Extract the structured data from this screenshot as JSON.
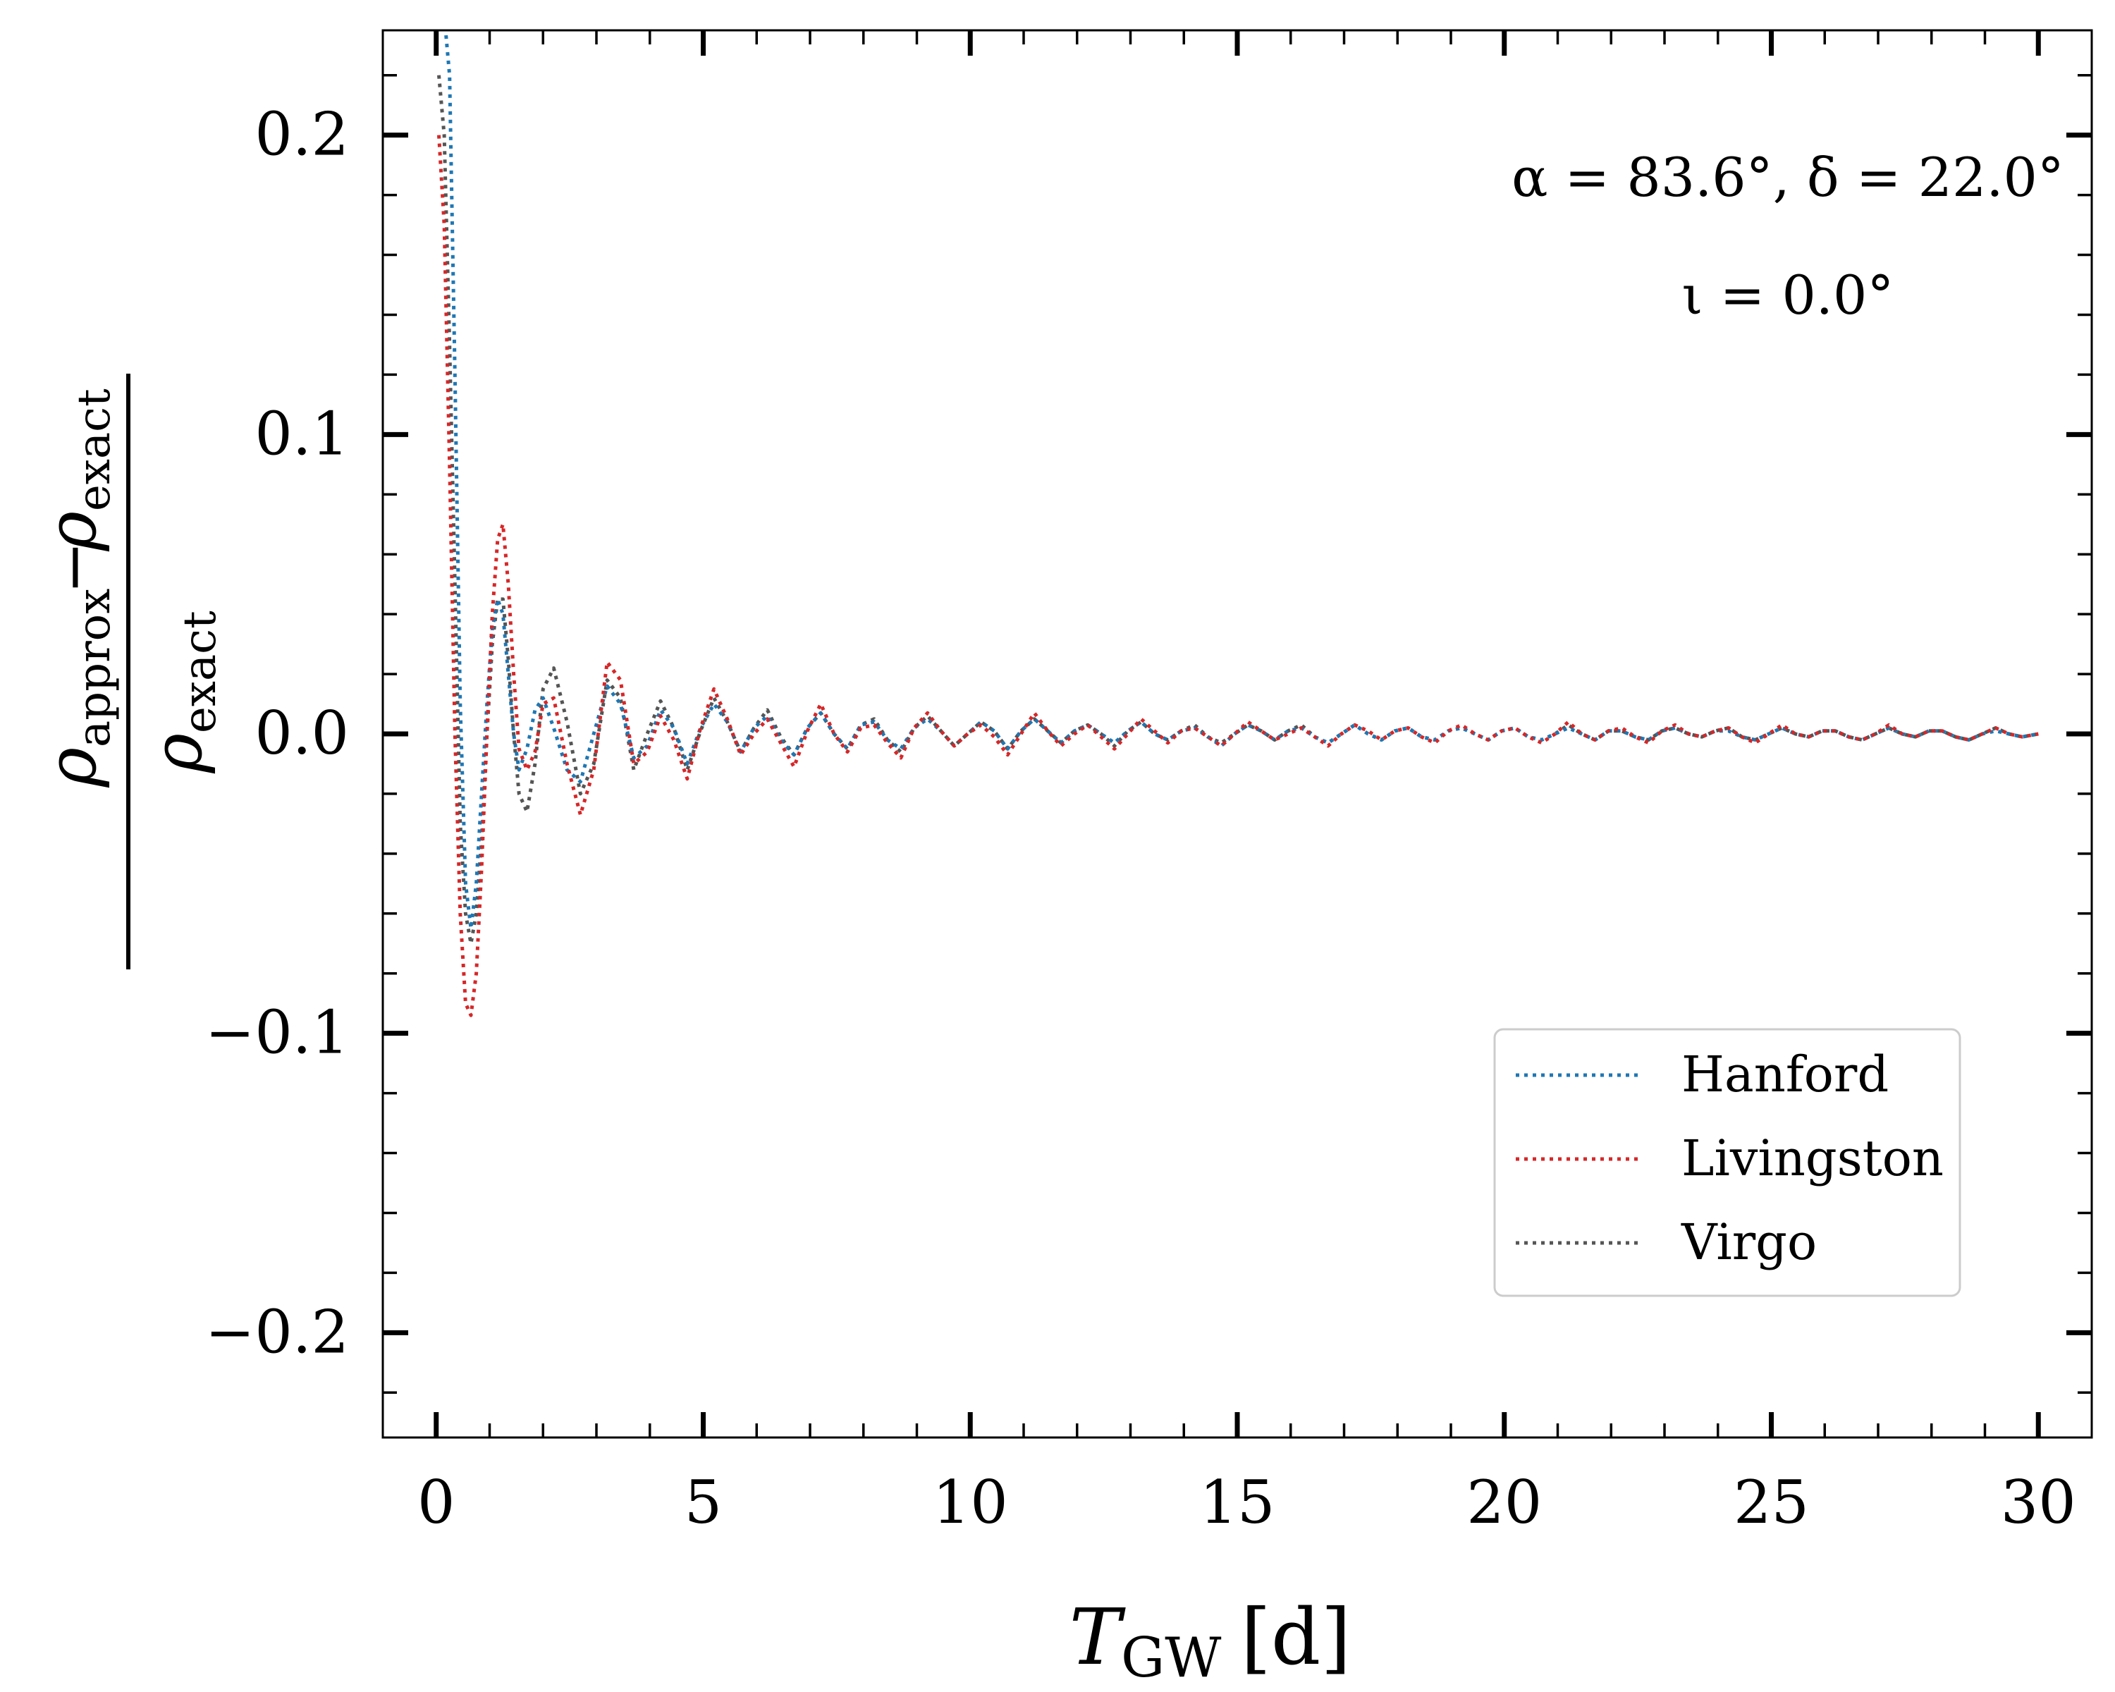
{
  "chart_data": {
    "type": "line",
    "xlabel": "T_GW [d]",
    "xlabel_main": "T",
    "xlabel_sub": "GW",
    "xlabel_unit": " [d]",
    "ylabel": "(ρ_approx − ρ_exact) / ρ_exact",
    "ylabel_num_a": "ρ",
    "ylabel_num_a_sub": "approx",
    "ylabel_num_op": "−",
    "ylabel_num_b": "ρ",
    "ylabel_num_b_sub": "exact",
    "ylabel_den": "ρ",
    "ylabel_den_sub": "exact",
    "xlim": [
      -1,
      31
    ],
    "ylim": [
      -0.235,
      0.235
    ],
    "xticks": [
      0,
      5,
      10,
      15,
      20,
      25,
      30
    ],
    "yticks": [
      -0.2,
      -0.1,
      0.0,
      0.1,
      0.2
    ],
    "xtick_labels": [
      "0",
      "5",
      "10",
      "15",
      "20",
      "25",
      "30"
    ],
    "ytick_labels": [
      "−0.2",
      "−0.1",
      "0.0",
      "0.1",
      "0.2"
    ],
    "annotations": {
      "line1": "α = 83.6°, δ = 22.0°",
      "line2": "ι = 0.0°"
    },
    "legend_position": "lower right",
    "series": [
      {
        "name": "Hanford",
        "color": "#1f77b4",
        "x": [
          0.05,
          0.15,
          0.25,
          0.35,
          0.45,
          0.55,
          0.65,
          0.75,
          0.85,
          0.95,
          1.05,
          1.15,
          1.25,
          1.35,
          1.45,
          1.55,
          1.7,
          1.85,
          2.0,
          2.2,
          2.45,
          2.7,
          2.95,
          3.2,
          3.45,
          3.7,
          3.95,
          4.2,
          4.45,
          4.7,
          4.95,
          5.2,
          5.45,
          5.7,
          5.95,
          6.2,
          6.45,
          6.7,
          6.95,
          7.2,
          7.45,
          7.7,
          7.95,
          8.2,
          8.45,
          8.7,
          8.95,
          9.2,
          9.45,
          9.7,
          9.95,
          10.2,
          10.45,
          10.7,
          10.95,
          11.2,
          11.45,
          11.7,
          11.95,
          12.2,
          12.45,
          12.7,
          12.95,
          13.2,
          13.45,
          13.7,
          13.95,
          14.2,
          14.45,
          14.7,
          14.95,
          15.2,
          15.45,
          15.7,
          15.95,
          16.2,
          16.45,
          16.7,
          16.95,
          17.2,
          17.45,
          17.7,
          17.95,
          18.2,
          18.45,
          18.7,
          18.95,
          19.2,
          19.45,
          19.7,
          19.95,
          20.2,
          20.45,
          20.7,
          20.95,
          21.2,
          21.45,
          21.7,
          21.95,
          22.2,
          22.45,
          22.7,
          22.95,
          23.2,
          23.45,
          23.7,
          23.95,
          24.2,
          24.45,
          24.7,
          24.95,
          25.2,
          25.45,
          25.7,
          25.95,
          26.2,
          26.45,
          26.7,
          26.95,
          27.2,
          27.45,
          27.7,
          27.95,
          28.2,
          28.45,
          28.7,
          28.95,
          29.2,
          29.45,
          29.7,
          30.0
        ],
        "y": [
          0.24,
          0.24,
          0.22,
          0.12,
          0.01,
          -0.05,
          -0.065,
          -0.05,
          -0.02,
          0.01,
          0.035,
          0.045,
          0.04,
          0.02,
          0.0,
          -0.012,
          -0.005,
          0.008,
          0.012,
          0.002,
          -0.012,
          -0.016,
          0.0,
          0.016,
          0.01,
          -0.008,
          -0.004,
          0.008,
          0.002,
          -0.01,
          0.002,
          0.01,
          0.004,
          -0.006,
          0.002,
          0.006,
          -0.002,
          -0.007,
          0.002,
          0.007,
          0.0,
          -0.005,
          0.003,
          0.004,
          -0.002,
          -0.005,
          0.002,
          0.005,
          0.001,
          -0.004,
          0.0,
          0.004,
          0.001,
          -0.005,
          0.001,
          0.005,
          0.001,
          -0.003,
          0.001,
          0.003,
          0.0,
          -0.003,
          0.001,
          0.004,
          0.0,
          -0.002,
          0.001,
          0.002,
          -0.001,
          -0.004,
          0.0,
          0.003,
          0.001,
          -0.002,
          0.001,
          0.002,
          -0.001,
          -0.003,
          0.0,
          0.003,
          0.0,
          -0.002,
          0.001,
          0.002,
          -0.001,
          -0.002,
          0.001,
          0.002,
          0.0,
          -0.002,
          0.001,
          0.002,
          -0.001,
          -0.002,
          0.0,
          0.002,
          0.0,
          -0.002,
          0.001,
          0.001,
          -0.001,
          -0.002,
          0.001,
          0.002,
          0.0,
          -0.001,
          0.001,
          0.001,
          -0.001,
          -0.002,
          0.0,
          0.002,
          0.0,
          -0.001,
          0.001,
          0.001,
          -0.001,
          -0.002,
          0.0,
          0.002,
          0.0,
          -0.001,
          0.001,
          0.001,
          -0.001,
          -0.002,
          0.0,
          0.001,
          0.0,
          -0.001,
          0.0
        ]
      },
      {
        "name": "Livingston",
        "color": "#d62728",
        "x": [
          0.05,
          0.15,
          0.25,
          0.35,
          0.45,
          0.55,
          0.65,
          0.75,
          0.85,
          0.95,
          1.05,
          1.15,
          1.25,
          1.35,
          1.45,
          1.55,
          1.7,
          1.85,
          2.0,
          2.2,
          2.45,
          2.7,
          2.95,
          3.2,
          3.45,
          3.7,
          3.95,
          4.2,
          4.45,
          4.7,
          4.95,
          5.2,
          5.45,
          5.7,
          5.95,
          6.2,
          6.45,
          6.7,
          6.95,
          7.2,
          7.45,
          7.7,
          7.95,
          8.2,
          8.45,
          8.7,
          8.95,
          9.2,
          9.45,
          9.7,
          9.95,
          10.2,
          10.45,
          10.7,
          10.95,
          11.2,
          11.45,
          11.7,
          11.95,
          12.2,
          12.45,
          12.7,
          12.95,
          13.2,
          13.45,
          13.7,
          13.95,
          14.2,
          14.45,
          14.7,
          14.95,
          15.2,
          15.45,
          15.7,
          15.95,
          16.2,
          16.45,
          16.7,
          16.95,
          17.2,
          17.45,
          17.7,
          17.95,
          18.2,
          18.45,
          18.7,
          18.95,
          19.2,
          19.45,
          19.7,
          19.95,
          20.2,
          20.45,
          20.7,
          20.95,
          21.2,
          21.45,
          21.7,
          21.95,
          22.2,
          22.45,
          22.7,
          22.95,
          23.2,
          23.45,
          23.7,
          23.95,
          24.2,
          24.45,
          24.7,
          24.95,
          25.2,
          25.45,
          25.7,
          25.95,
          26.2,
          26.45,
          26.7,
          26.95,
          27.2,
          27.45,
          27.7,
          27.95,
          28.2,
          28.45,
          28.7,
          28.95,
          29.2,
          29.45,
          29.7,
          30.0
        ],
        "y": [
          0.2,
          0.17,
          0.09,
          0.0,
          -0.06,
          -0.09,
          -0.094,
          -0.08,
          -0.045,
          0.0,
          0.04,
          0.065,
          0.07,
          0.05,
          0.02,
          -0.005,
          -0.012,
          -0.006,
          0.01,
          0.012,
          -0.01,
          -0.027,
          -0.012,
          0.024,
          0.018,
          -0.01,
          -0.006,
          0.006,
          -0.002,
          -0.015,
          0.002,
          0.015,
          0.005,
          -0.007,
          0.0,
          0.005,
          -0.003,
          -0.011,
          0.001,
          0.01,
          0.0,
          -0.006,
          0.002,
          0.003,
          -0.003,
          -0.008,
          0.002,
          0.007,
          0.001,
          -0.004,
          0.0,
          0.003,
          -0.001,
          -0.007,
          0.0,
          0.007,
          0.001,
          -0.004,
          0.0,
          0.003,
          -0.001,
          -0.005,
          0.0,
          0.005,
          0.001,
          -0.003,
          0.001,
          0.002,
          -0.001,
          -0.004,
          0.0,
          0.004,
          0.001,
          -0.002,
          0.0,
          0.002,
          -0.001,
          -0.004,
          0.0,
          0.003,
          0.001,
          -0.002,
          0.001,
          0.002,
          -0.001,
          -0.003,
          0.001,
          0.003,
          0.0,
          -0.002,
          0.001,
          0.002,
          -0.001,
          -0.003,
          0.0,
          0.004,
          0.0,
          -0.002,
          0.001,
          0.002,
          -0.001,
          -0.003,
          0.001,
          0.003,
          0.0,
          -0.001,
          0.001,
          0.002,
          -0.001,
          -0.003,
          0.0,
          0.003,
          0.0,
          -0.001,
          0.001,
          0.001,
          -0.001,
          -0.002,
          0.0,
          0.003,
          0.0,
          -0.001,
          0.001,
          0.001,
          -0.001,
          -0.002,
          0.0,
          0.002,
          0.0,
          -0.001,
          0.0
        ]
      },
      {
        "name": "Virgo",
        "color": "#555555",
        "x": [
          0.05,
          0.15,
          0.25,
          0.35,
          0.45,
          0.55,
          0.65,
          0.75,
          0.85,
          0.95,
          1.05,
          1.15,
          1.25,
          1.35,
          1.45,
          1.55,
          1.7,
          1.85,
          2.0,
          2.2,
          2.45,
          2.7,
          2.95,
          3.2,
          3.45,
          3.7,
          3.95,
          4.2,
          4.45,
          4.7,
          4.95,
          5.2,
          5.45,
          5.7,
          5.95,
          6.2,
          6.45,
          6.7,
          6.95,
          7.2,
          7.45,
          7.7,
          7.95,
          8.2,
          8.45,
          8.7,
          8.95,
          9.2,
          9.45,
          9.7,
          9.95,
          10.2,
          10.45,
          10.7,
          10.95,
          11.2,
          11.45,
          11.7,
          11.95,
          12.2,
          12.45,
          12.7,
          12.95,
          13.2,
          13.45,
          13.7,
          13.95,
          14.2,
          14.45,
          14.7,
          14.95,
          15.2,
          15.45,
          15.7,
          15.95,
          16.2,
          16.45,
          16.7,
          16.95,
          17.2,
          17.45,
          17.7,
          17.95,
          18.2,
          18.45,
          18.7,
          18.95,
          19.2,
          19.45,
          19.7,
          19.95,
          20.2,
          20.45,
          20.7,
          20.95,
          21.2,
          21.45,
          21.7,
          21.95,
          22.2,
          22.45,
          22.7,
          22.95,
          23.2,
          23.45,
          23.7,
          23.95,
          24.2,
          24.45,
          24.7,
          24.95,
          25.2,
          25.45,
          25.7,
          25.95,
          26.2,
          26.45,
          26.7,
          26.95,
          27.2,
          27.45,
          27.7,
          27.95,
          28.2,
          28.45,
          28.7,
          28.95,
          29.2,
          29.45,
          29.7,
          30.0
        ],
        "y": [
          0.22,
          0.2,
          0.13,
          0.05,
          -0.03,
          -0.06,
          -0.07,
          -0.06,
          -0.035,
          0.0,
          0.03,
          0.045,
          0.045,
          0.025,
          0.0,
          -0.02,
          -0.026,
          -0.01,
          0.015,
          0.022,
          0.004,
          -0.02,
          -0.01,
          0.018,
          0.012,
          -0.012,
          0.0,
          0.011,
          0.002,
          -0.012,
          0.001,
          0.012,
          0.004,
          -0.006,
          0.002,
          0.008,
          -0.001,
          -0.007,
          0.002,
          0.007,
          0.0,
          -0.005,
          0.003,
          0.005,
          -0.002,
          -0.006,
          0.002,
          0.006,
          0.001,
          -0.004,
          0.0,
          0.004,
          0.001,
          -0.005,
          0.001,
          0.005,
          0.001,
          -0.003,
          0.001,
          0.003,
          0.0,
          -0.004,
          0.001,
          0.004,
          0.0,
          -0.002,
          0.001,
          0.003,
          -0.001,
          -0.003,
          0.0,
          0.003,
          0.001,
          -0.002,
          0.001,
          0.003,
          -0.001,
          -0.003,
          0.0,
          0.003,
          0.0,
          -0.002,
          0.001,
          0.002,
          -0.001,
          -0.002,
          0.001,
          0.002,
          0.0,
          -0.002,
          0.001,
          0.002,
          -0.001,
          -0.002,
          0.0,
          0.003,
          0.0,
          -0.002,
          0.001,
          0.001,
          -0.001,
          -0.002,
          0.001,
          0.002,
          0.0,
          -0.001,
          0.001,
          0.002,
          -0.001,
          -0.002,
          0.0,
          0.002,
          0.0,
          -0.001,
          0.001,
          0.001,
          -0.001,
          -0.002,
          0.0,
          0.002,
          0.0,
          -0.001,
          0.001,
          0.001,
          -0.001,
          -0.002,
          0.0,
          0.002,
          0.0,
          -0.001,
          0.0
        ]
      }
    ]
  }
}
